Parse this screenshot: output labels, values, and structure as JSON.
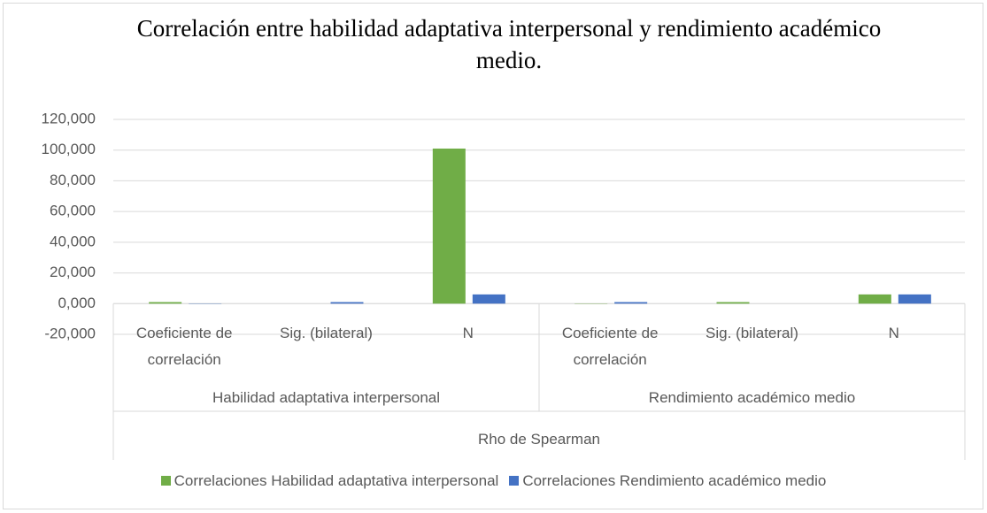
{
  "chart_data": {
    "type": "bar",
    "title": "Correlación entre habilidad  adaptativa interpersonal y rendimiento académico medio.",
    "categories": [
      "Coeficiente de correlación",
      "Sig. (bilateral)",
      "N",
      "Coeficiente de correlación",
      "Sig. (bilateral)",
      "N"
    ],
    "category_groups": [
      "Habilidad adaptativa interpersonal",
      "Rendimiento académico medio"
    ],
    "category_super": "Rho de Spearman",
    "series": [
      {
        "name": "Correlaciones Habilidad adaptativa interpersonal",
        "color": "#70ad47",
        "values": [
          1,
          0,
          101,
          -0.2,
          1,
          6
        ]
      },
      {
        "name": "Correlaciones Rendimiento académico medio",
        "color": "#4472c4",
        "values": [
          -0.2,
          1,
          6,
          1,
          0,
          6
        ]
      }
    ],
    "ylim": [
      -20,
      120
    ],
    "yticks": [
      {
        "value": -20,
        "label": "-20,000"
      },
      {
        "value": 0,
        "label": "0,000"
      },
      {
        "value": 20,
        "label": "20,000"
      },
      {
        "value": 40,
        "label": "40,000"
      },
      {
        "value": 60,
        "label": "60,000"
      },
      {
        "value": 80,
        "label": "80,000"
      },
      {
        "value": 100,
        "label": "100,000"
      },
      {
        "value": 120,
        "label": "120,000"
      }
    ],
    "grid": true,
    "legend": "bottom"
  }
}
